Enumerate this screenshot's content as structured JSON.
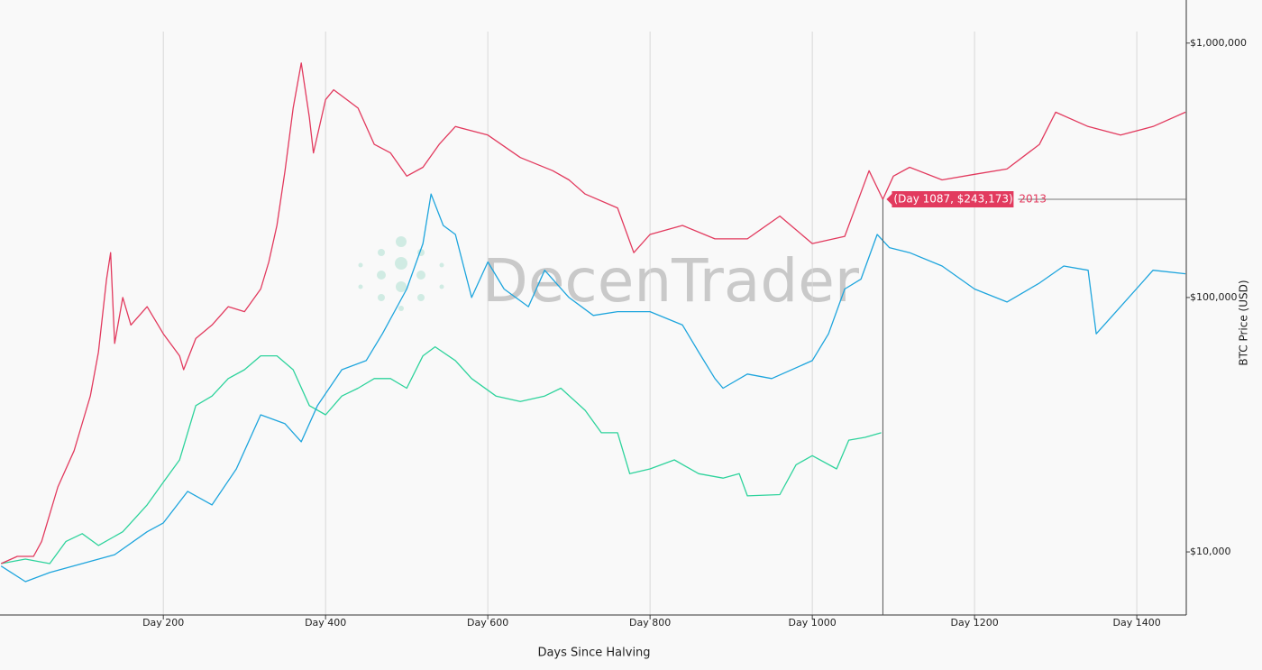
{
  "chart_data": {
    "type": "line",
    "log_y": true,
    "grid": "x",
    "xlabel": "Days Since Halving",
    "ylabel": "BTC Price (USD)",
    "watermark": "DecenTrader",
    "xlim": [
      2,
      1461
    ],
    "ylim": [
      5650,
      1110000
    ],
    "xticks": [
      {
        "value": 200,
        "label": "Day 200"
      },
      {
        "value": 400,
        "label": "Day 400"
      },
      {
        "value": 600,
        "label": "Day 600"
      },
      {
        "value": 800,
        "label": "Day 800"
      },
      {
        "value": 1000,
        "label": "Day 1000"
      },
      {
        "value": 1200,
        "label": "Day 1200"
      },
      {
        "value": 1400,
        "label": "Day 1400"
      }
    ],
    "yticks": [
      {
        "value": 10000,
        "label": "$10,000"
      },
      {
        "value": 100000,
        "label": "$100,000"
      },
      {
        "value": 1000000,
        "label": "$1,000,000"
      }
    ],
    "hover": {
      "label": "(Day 1087, $243,173)",
      "x": 1087,
      "y": 243173
    },
    "series": [
      {
        "name": "2013",
        "color": "#e23a5e",
        "x": [
          0,
          20,
          40,
          50,
          70,
          90,
          100,
          110,
          120,
          130,
          135,
          140,
          150,
          160,
          180,
          200,
          220,
          225,
          240,
          260,
          280,
          300,
          320,
          330,
          340,
          350,
          360,
          370,
          380,
          385,
          400,
          410,
          440,
          460,
          480,
          500,
          520,
          540,
          560,
          600,
          640,
          680,
          700,
          720,
          760,
          780,
          800,
          840,
          880,
          920,
          960,
          1000,
          1040,
          1070,
          1087,
          1100,
          1120,
          1160,
          1200,
          1240,
          1280,
          1300,
          1340,
          1380,
          1420,
          1460
        ],
        "values": [
          9000,
          9600,
          9600,
          11000,
          18000,
          25000,
          32000,
          41000,
          61000,
          118000,
          150000,
          66000,
          100000,
          78000,
          92000,
          72000,
          59000,
          52000,
          69000,
          78000,
          92000,
          88000,
          108000,
          138000,
          192000,
          315000,
          555000,
          835000,
          510000,
          370000,
          600000,
          655000,
          555000,
          400000,
          370000,
          300000,
          325000,
          400000,
          470000,
          435000,
          355000,
          315000,
          290000,
          255000,
          225000,
          150000,
          177000,
          192000,
          170000,
          170000,
          209000,
          163000,
          174000,
          315000,
          243173,
          300000,
          325000,
          290000,
          305000,
          320000,
          400000,
          535000,
          470000,
          435000,
          470000,
          535000
        ]
      },
      {
        "color": "#1ea5dd",
        "x": [
          0,
          30,
          60,
          100,
          140,
          180,
          200,
          230,
          260,
          290,
          320,
          350,
          370,
          390,
          420,
          450,
          470,
          500,
          520,
          530,
          545,
          560,
          580,
          600,
          620,
          650,
          670,
          700,
          730,
          760,
          800,
          840,
          860,
          880,
          890,
          920,
          950,
          1000,
          1020,
          1040,
          1060,
          1080,
          1095,
          1120,
          1160,
          1200,
          1240,
          1280,
          1310,
          1340,
          1350,
          1380,
          1420,
          1460
        ],
        "values": [
          8800,
          7640,
          8300,
          9000,
          9750,
          12000,
          13000,
          17300,
          15300,
          21200,
          34600,
          31900,
          27100,
          37600,
          52000,
          56500,
          72000,
          108000,
          163000,
          255000,
          192000,
          177000,
          100000,
          138000,
          108000,
          92000,
          128000,
          100000,
          85000,
          88000,
          88000,
          78000,
          61000,
          48000,
          44000,
          50000,
          48000,
          56500,
          72000,
          108000,
          118000,
          177000,
          157000,
          150000,
          133000,
          108000,
          96000,
          114000,
          133000,
          128000,
          72000,
          92000,
          128000,
          124000
        ]
      },
      {
        "color": "#2ed39c",
        "x": [
          0,
          30,
          60,
          80,
          100,
          120,
          150,
          180,
          200,
          220,
          240,
          260,
          280,
          300,
          320,
          340,
          360,
          380,
          400,
          420,
          440,
          460,
          480,
          500,
          520,
          535,
          560,
          580,
          610,
          640,
          670,
          690,
          720,
          740,
          760,
          775,
          800,
          830,
          860,
          890,
          910,
          920,
          960,
          980,
          1000,
          1030,
          1045,
          1065,
          1085
        ],
        "values": [
          9000,
          9370,
          9000,
          11000,
          11800,
          10600,
          12000,
          15300,
          18800,
          23000,
          37600,
          41000,
          48000,
          52000,
          59000,
          59000,
          52000,
          37600,
          34600,
          41000,
          44000,
          48000,
          48000,
          44000,
          59000,
          64000,
          56500,
          48000,
          41000,
          39000,
          41000,
          44000,
          36000,
          29400,
          29400,
          20300,
          21200,
          23000,
          20300,
          19500,
          20300,
          16600,
          16800,
          22000,
          23900,
          21200,
          27500,
          28200,
          29400
        ]
      }
    ]
  }
}
